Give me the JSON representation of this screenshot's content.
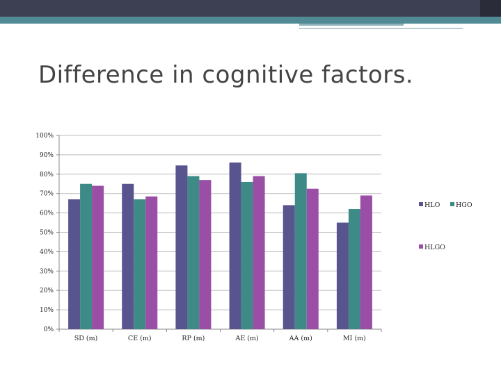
{
  "slide": {
    "title": "Difference in cognitive factors."
  },
  "colors": {
    "header_dark": "#3d3f52",
    "header_teal": "#4f8a95",
    "HLO": "#57548e",
    "HGO": "#3e8a87",
    "HLGO": "#9b4ea6"
  },
  "chart_data": {
    "type": "bar",
    "categories": [
      "SD (m)",
      "CE (m)",
      "RP (m)",
      "AE (m)",
      "AA (m)",
      "MI (m)"
    ],
    "series": [
      {
        "name": "HLO",
        "values": [
          0.67,
          0.75,
          0.845,
          0.86,
          0.64,
          0.55
        ]
      },
      {
        "name": "HGO",
        "values": [
          0.75,
          0.67,
          0.79,
          0.76,
          0.805,
          0.62
        ]
      },
      {
        "name": "HLGO",
        "values": [
          0.74,
          0.685,
          0.77,
          0.79,
          0.725,
          0.69
        ]
      }
    ],
    "ylim": [
      0,
      1
    ],
    "yticks": [
      "0%",
      "10%",
      "20%",
      "30%",
      "40%",
      "50%",
      "60%",
      "70%",
      "80%",
      "90%",
      "100%"
    ],
    "grid": true,
    "legend": "right",
    "title": "",
    "xlabel": "",
    "ylabel": ""
  }
}
